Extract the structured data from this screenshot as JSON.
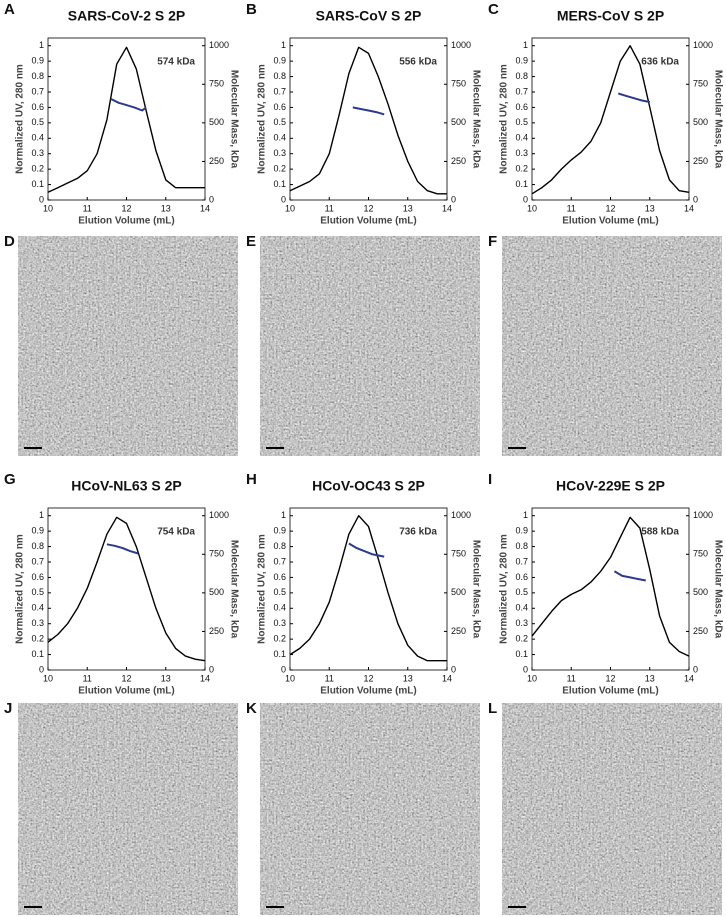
{
  "chart_data": [
    {
      "type": "line",
      "panel": "A",
      "title": "SARS-CoV-2 S 2P",
      "xlabel": "Elution Volume (mL)",
      "ylabel": "Normalized UV, 280 nm",
      "y2label": "Molecular Mass, kDa",
      "annotation": "574 kDa",
      "xlim": [
        10,
        14
      ],
      "xticks": [
        10,
        11,
        12,
        13,
        14
      ],
      "ylim": [
        0,
        1.05
      ],
      "yticks": [
        0,
        0.1,
        0.2,
        0.3,
        0.4,
        0.5,
        0.6,
        0.7,
        0.8,
        0.9,
        1
      ],
      "y2lim": [
        0,
        1050
      ],
      "y2ticks": [
        0,
        250,
        500,
        750,
        1000
      ],
      "series": [
        {
          "color": "#000000",
          "x": [
            10,
            10.25,
            10.5,
            10.75,
            11,
            11.25,
            11.5,
            11.75,
            12,
            12.25,
            12.5,
            12.75,
            13,
            13.25,
            13.5,
            13.75,
            14
          ],
          "values": [
            0.05,
            0.08,
            0.11,
            0.14,
            0.19,
            0.3,
            0.52,
            0.88,
            0.99,
            0.85,
            0.58,
            0.32,
            0.13,
            0.08,
            0.08,
            0.08,
            0.08
          ]
        },
        {
          "axis": "y2",
          "color": "#2b3a8c",
          "x": [
            11.6,
            11.8,
            12,
            12.2,
            12.4,
            12.5
          ],
          "values": [
            655,
            630,
            615,
            600,
            580,
            600
          ]
        }
      ]
    },
    {
      "type": "line",
      "panel": "B",
      "title": "SARS-CoV S 2P",
      "xlabel": "Elution Volume (mL)",
      "ylabel": "Normalized UV, 280 nm",
      "y2label": "Molecular Mass, kDa",
      "annotation": "556 kDa",
      "xlim": [
        10,
        14
      ],
      "xticks": [
        10,
        11,
        12,
        13,
        14
      ],
      "ylim": [
        0,
        1.05
      ],
      "yticks": [
        0,
        0.1,
        0.2,
        0.3,
        0.4,
        0.5,
        0.6,
        0.7,
        0.8,
        0.9,
        1
      ],
      "y2lim": [
        0,
        1050
      ],
      "y2ticks": [
        0,
        250,
        500,
        750,
        1000
      ],
      "series": [
        {
          "color": "#000000",
          "x": [
            10,
            10.25,
            10.5,
            10.75,
            11,
            11.25,
            11.5,
            11.75,
            12,
            12.25,
            12.5,
            12.75,
            13,
            13.25,
            13.5,
            13.75,
            14
          ],
          "values": [
            0.06,
            0.09,
            0.12,
            0.17,
            0.3,
            0.55,
            0.82,
            0.99,
            0.95,
            0.8,
            0.62,
            0.42,
            0.25,
            0.12,
            0.06,
            0.04,
            0.04
          ]
        },
        {
          "axis": "y2",
          "color": "#2b3a8c",
          "x": [
            11.6,
            11.8,
            12,
            12.2,
            12.4
          ],
          "values": [
            600,
            590,
            580,
            570,
            555
          ]
        }
      ]
    },
    {
      "type": "line",
      "panel": "C",
      "title": "MERS-CoV S 2P",
      "xlabel": "Elution Volume (mL)",
      "ylabel": "Normalized UV, 280 nm",
      "y2label": "Molecular Mass, kDa",
      "annotation": "636 kDa",
      "xlim": [
        10,
        14
      ],
      "xticks": [
        10,
        11,
        12,
        13,
        14
      ],
      "ylim": [
        0,
        1.05
      ],
      "yticks": [
        0,
        0.1,
        0.2,
        0.3,
        0.4,
        0.5,
        0.6,
        0.7,
        0.8,
        0.9,
        1
      ],
      "y2lim": [
        0,
        1050
      ],
      "y2ticks": [
        0,
        250,
        500,
        750,
        1000
      ],
      "series": [
        {
          "color": "#000000",
          "x": [
            10,
            10.25,
            10.5,
            10.75,
            11,
            11.25,
            11.5,
            11.75,
            12,
            12.25,
            12.5,
            12.75,
            13,
            13.25,
            13.5,
            13.75,
            14
          ],
          "values": [
            0.04,
            0.08,
            0.13,
            0.2,
            0.26,
            0.31,
            0.38,
            0.5,
            0.7,
            0.9,
            1,
            0.88,
            0.6,
            0.32,
            0.13,
            0.06,
            0.05
          ]
        },
        {
          "axis": "y2",
          "color": "#2b3a8c",
          "x": [
            12.2,
            12.4,
            12.6,
            12.8,
            13
          ],
          "values": [
            690,
            675,
            660,
            645,
            635
          ]
        }
      ]
    },
    {
      "type": "line",
      "panel": "G",
      "title": "HCoV-NL63 S 2P",
      "xlabel": "Elution Volume (mL)",
      "ylabel": "Normalized UV, 280 nm",
      "y2label": "Molecular Mass, kDa",
      "annotation": "754 kDa",
      "xlim": [
        10,
        14
      ],
      "xticks": [
        10,
        11,
        12,
        13,
        14
      ],
      "ylim": [
        0,
        1.05
      ],
      "yticks": [
        0,
        0.1,
        0.2,
        0.3,
        0.4,
        0.5,
        0.6,
        0.7,
        0.8,
        0.9,
        1
      ],
      "y2lim": [
        0,
        1050
      ],
      "y2ticks": [
        0,
        250,
        500,
        750,
        1000
      ],
      "series": [
        {
          "color": "#000000",
          "x": [
            10,
            10.25,
            10.5,
            10.75,
            11,
            11.25,
            11.5,
            11.75,
            12,
            12.25,
            12.5,
            12.75,
            13,
            13.25,
            13.5,
            13.75,
            14
          ],
          "values": [
            0.18,
            0.23,
            0.3,
            0.4,
            0.53,
            0.7,
            0.88,
            0.99,
            0.95,
            0.8,
            0.6,
            0.4,
            0.24,
            0.14,
            0.09,
            0.07,
            0.06
          ]
        },
        {
          "axis": "y2",
          "color": "#2b3a8c",
          "x": [
            11.5,
            11.7,
            11.9,
            12.1,
            12.3
          ],
          "values": [
            815,
            805,
            790,
            770,
            755
          ]
        }
      ]
    },
    {
      "type": "line",
      "panel": "H",
      "title": "HCoV-OC43 S 2P",
      "xlabel": "Elution Volume (mL)",
      "ylabel": "Normalized UV, 280 nm",
      "y2label": "Molecular Mass, kDa",
      "annotation": "736 kDa",
      "xlim": [
        10,
        14
      ],
      "xticks": [
        10,
        11,
        12,
        13,
        14
      ],
      "ylim": [
        0,
        1.05
      ],
      "yticks": [
        0,
        0.1,
        0.2,
        0.3,
        0.4,
        0.5,
        0.6,
        0.7,
        0.8,
        0.9,
        1
      ],
      "y2lim": [
        0,
        1050
      ],
      "y2ticks": [
        0,
        250,
        500,
        750,
        1000
      ],
      "series": [
        {
          "color": "#000000",
          "x": [
            10,
            10.25,
            10.5,
            10.75,
            11,
            11.25,
            11.5,
            11.75,
            12,
            12.25,
            12.5,
            12.75,
            13,
            13.25,
            13.5,
            13.75,
            14
          ],
          "values": [
            0.1,
            0.14,
            0.2,
            0.3,
            0.44,
            0.65,
            0.88,
            1,
            0.93,
            0.72,
            0.5,
            0.3,
            0.16,
            0.09,
            0.06,
            0.06,
            0.06
          ]
        },
        {
          "axis": "y2",
          "color": "#2b3a8c",
          "x": [
            11.5,
            11.7,
            11.9,
            12.1,
            12.4
          ],
          "values": [
            820,
            790,
            770,
            750,
            735
          ]
        }
      ]
    },
    {
      "type": "line",
      "panel": "I",
      "title": "HCoV-229E S 2P",
      "xlabel": "Elution Volume (mL)",
      "ylabel": "Normalized UV, 280 nm",
      "y2label": "Molecular Mass, kDa",
      "annotation": "588 kDa",
      "xlim": [
        10,
        14
      ],
      "xticks": [
        10,
        11,
        12,
        13,
        14
      ],
      "ylim": [
        0,
        1.05
      ],
      "yticks": [
        0,
        0.1,
        0.2,
        0.3,
        0.4,
        0.5,
        0.6,
        0.7,
        0.8,
        0.9,
        1
      ],
      "y2lim": [
        0,
        1050
      ],
      "y2ticks": [
        0,
        250,
        500,
        750,
        1000
      ],
      "series": [
        {
          "color": "#000000",
          "x": [
            10,
            10.25,
            10.5,
            10.75,
            11,
            11.25,
            11.5,
            11.75,
            12,
            12.25,
            12.5,
            12.75,
            13,
            13.25,
            13.5,
            13.75,
            14
          ],
          "values": [
            0.22,
            0.3,
            0.38,
            0.45,
            0.49,
            0.52,
            0.57,
            0.64,
            0.73,
            0.86,
            0.99,
            0.92,
            0.65,
            0.35,
            0.18,
            0.12,
            0.09
          ]
        },
        {
          "axis": "y2",
          "color": "#2b3a8c",
          "x": [
            12.1,
            12.3,
            12.5,
            12.7,
            12.9
          ],
          "values": [
            640,
            610,
            600,
            590,
            580
          ]
        }
      ]
    }
  ],
  "micrographs": [
    {
      "label": "D"
    },
    {
      "label": "E"
    },
    {
      "label": "F"
    },
    {
      "label": "J"
    },
    {
      "label": "K"
    },
    {
      "label": "L"
    }
  ]
}
